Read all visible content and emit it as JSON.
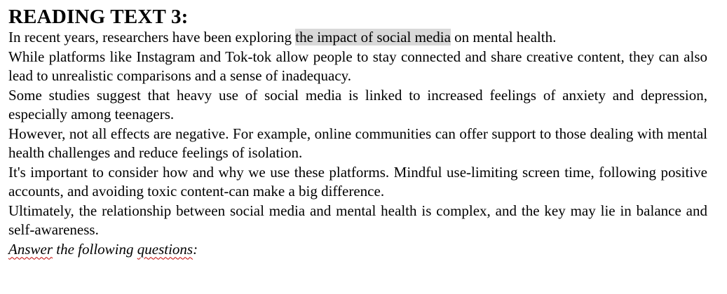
{
  "title": "READING TEXT 3:",
  "paragraphs": {
    "p1_before": "In recent years, researchers have been exploring ",
    "p1_highlight": "the impact of social media",
    "p1_after": " on mental health.",
    "p2": "While platforms like Instagram and Tok-tok allow people to stay connected and share creative content, they can also lead to unrealistic comparisons and a sense of inadequacy.",
    "p3": "Some studies suggest that heavy use of social media is linked to increased feelings of anxiety and depression, especially among teenagers.",
    "p4": "However, not all effects are negative. For example, online communities can offer support to those dealing with mental health challenges and reduce feelings of isolation.",
    "p5": "It's important to consider how and why we use these platforms. Mindful use-limiting screen time, following positive accounts, and avoiding toxic content-can make a big difference.",
    "p6": "Ultimately, the relationship between social media and mental health is complex, and the key may lie in balance and self-awareness."
  },
  "instruction": {
    "word1": "Answer",
    "middle": " the following ",
    "word2": "questions",
    "end": ":"
  },
  "colors": {
    "highlight": "#d9d9d9",
    "spellcheck": "#c00000"
  }
}
